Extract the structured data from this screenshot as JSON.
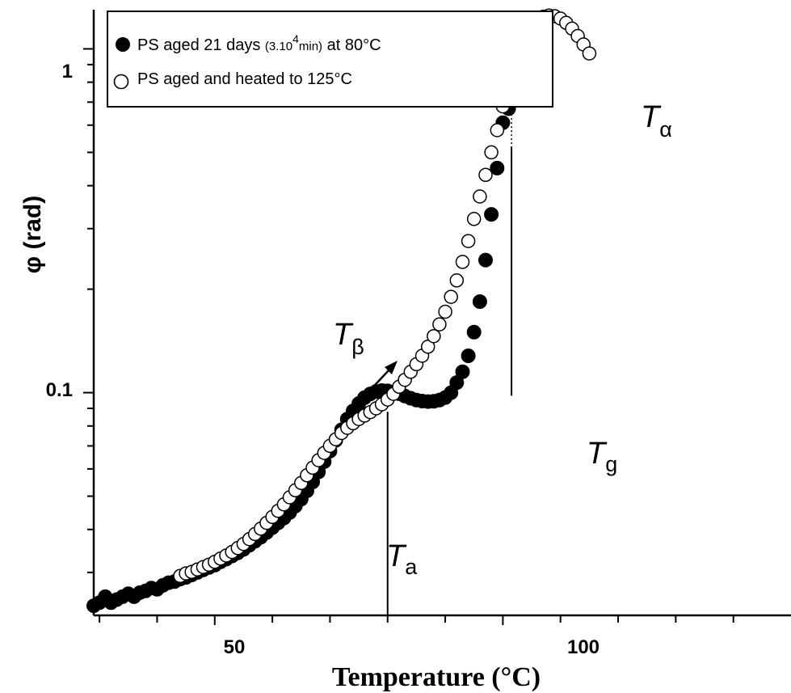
{
  "chart_data": {
    "type": "scatter",
    "xlabel": "Temperature (°C)",
    "ylabel": "φ (rad)",
    "xlim": [
      29,
      150
    ],
    "ylim": [
      0.0225,
      1.3
    ],
    "yscale": "log",
    "x_ticks": [
      50,
      100
    ],
    "y_ticks": [
      0.1,
      1
    ],
    "y_tick_labels": [
      "0.1",
      "1"
    ],
    "x_tick_labels": [
      "50",
      "100"
    ],
    "legend": {
      "position": "top-left",
      "entries": [
        {
          "prefix": "PS aged 21 days ",
          "small": "(3.10",
          "sup": "4",
          "small2": "min)",
          "suffix": " at 80°C"
        },
        {
          "prefix": "PS aged and heated to 125°C"
        }
      ]
    },
    "annotations": {
      "t_beta": {
        "main": "T",
        "sub": "β"
      },
      "t_alpha": {
        "main": "T",
        "sub": "α"
      },
      "t_a": {
        "main": "T",
        "sub": "a"
      },
      "t_g": {
        "main": "T",
        "sub": "g"
      }
    },
    "vertical_markers": [
      {
        "x": 80,
        "y_top": 0.088,
        "y_bottom": 0.0225
      },
      {
        "x": 101.5,
        "y_top": 0.52,
        "y_bottom": 0.098
      }
    ],
    "series": [
      {
        "name": "PS aged 21 days (3.10⁴min) at 80°C",
        "marker": "filled-circle",
        "points": [
          [
            29,
            0.024
          ],
          [
            30,
            0.0245
          ],
          [
            31,
            0.0255
          ],
          [
            32,
            0.0245
          ],
          [
            33,
            0.025
          ],
          [
            34,
            0.0255
          ],
          [
            35,
            0.026
          ],
          [
            36,
            0.0255
          ],
          [
            37,
            0.0262
          ],
          [
            38,
            0.0265
          ],
          [
            39,
            0.027
          ],
          [
            40,
            0.0268
          ],
          [
            41,
            0.0275
          ],
          [
            42,
            0.028
          ],
          [
            43,
            0.0282
          ],
          [
            44,
            0.0287
          ],
          [
            45,
            0.029
          ],
          [
            46,
            0.0295
          ],
          [
            47,
            0.03
          ],
          [
            48,
            0.0305
          ],
          [
            49,
            0.031
          ],
          [
            50,
            0.0315
          ],
          [
            51,
            0.0322
          ],
          [
            52,
            0.0328
          ],
          [
            53,
            0.0335
          ],
          [
            54,
            0.0342
          ],
          [
            55,
            0.035
          ],
          [
            56,
            0.036
          ],
          [
            57,
            0.037
          ],
          [
            58,
            0.038
          ],
          [
            59,
            0.0392
          ],
          [
            60,
            0.0405
          ],
          [
            61,
            0.0418
          ],
          [
            62,
            0.0432
          ],
          [
            63,
            0.0448
          ],
          [
            64,
            0.0468
          ],
          [
            65,
            0.049
          ],
          [
            66,
            0.0518
          ],
          [
            67,
            0.055
          ],
          [
            68,
            0.0588
          ],
          [
            69,
            0.063
          ],
          [
            70,
            0.0676
          ],
          [
            71,
            0.0727
          ],
          [
            72,
            0.078
          ],
          [
            73,
            0.0838
          ],
          [
            74,
            0.0885
          ],
          [
            75,
            0.093
          ],
          [
            76,
            0.0967
          ],
          [
            77,
            0.0992
          ],
          [
            78,
            0.1008
          ],
          [
            79,
            0.1014
          ],
          [
            80,
            0.1012
          ],
          [
            81,
            0.1005
          ],
          [
            82,
            0.0993
          ],
          [
            83,
            0.0978
          ],
          [
            84,
            0.0963
          ],
          [
            85,
            0.0952
          ],
          [
            86,
            0.0945
          ],
          [
            87,
            0.0942
          ],
          [
            88,
            0.0944
          ],
          [
            89,
            0.0952
          ],
          [
            90,
            0.0968
          ],
          [
            91,
            0.1
          ],
          [
            92,
            0.107
          ],
          [
            93,
            0.115
          ],
          [
            94,
            0.128
          ],
          [
            95,
            0.15
          ],
          [
            96,
            0.184
          ],
          [
            97,
            0.243
          ],
          [
            98,
            0.33
          ],
          [
            99,
            0.45
          ],
          [
            100,
            0.61
          ],
          [
            101,
            0.67
          ]
        ]
      },
      {
        "name": "PS aged and heated to 125°C",
        "marker": "open-circle",
        "points": [
          [
            44,
            0.0293
          ],
          [
            45,
            0.0298
          ],
          [
            46,
            0.0301
          ],
          [
            47,
            0.0306
          ],
          [
            48,
            0.0311
          ],
          [
            49,
            0.0316
          ],
          [
            50,
            0.0322
          ],
          [
            51,
            0.0329
          ],
          [
            52,
            0.0336
          ],
          [
            53,
            0.0344
          ],
          [
            54,
            0.0353
          ],
          [
            55,
            0.0363
          ],
          [
            56,
            0.0375
          ],
          [
            57,
            0.0388
          ],
          [
            58,
            0.0402
          ],
          [
            59,
            0.0418
          ],
          [
            60,
            0.0435
          ],
          [
            61,
            0.0453
          ],
          [
            62,
            0.0473
          ],
          [
            63,
            0.0496
          ],
          [
            64,
            0.052
          ],
          [
            65,
            0.0546
          ],
          [
            66,
            0.0575
          ],
          [
            67,
            0.0605
          ],
          [
            68,
            0.0636
          ],
          [
            69,
            0.0668
          ],
          [
            70,
            0.07
          ],
          [
            71,
            0.0732
          ],
          [
            72,
            0.0763
          ],
          [
            73,
            0.079
          ],
          [
            74,
            0.0815
          ],
          [
            75,
            0.0838
          ],
          [
            76,
            0.0858
          ],
          [
            77,
            0.0878
          ],
          [
            78,
            0.09
          ],
          [
            79,
            0.0925
          ],
          [
            80,
            0.0955
          ],
          [
            81,
            0.0992
          ],
          [
            82,
            0.104
          ],
          [
            83,
            0.109
          ],
          [
            84,
            0.115
          ],
          [
            85,
            0.121
          ],
          [
            86,
            0.128
          ],
          [
            87,
            0.136
          ],
          [
            88,
            0.146
          ],
          [
            89,
            0.158
          ],
          [
            90,
            0.172
          ],
          [
            91,
            0.19
          ],
          [
            92,
            0.212
          ],
          [
            93,
            0.24
          ],
          [
            94,
            0.276
          ],
          [
            95,
            0.32
          ],
          [
            96,
            0.372
          ],
          [
            97,
            0.43
          ],
          [
            98,
            0.5
          ],
          [
            99,
            0.58
          ],
          [
            100,
            0.68
          ],
          [
            101,
            0.8
          ],
          [
            102,
            0.93
          ],
          [
            103,
            1.04
          ],
          [
            104,
            1.12
          ],
          [
            105,
            1.18
          ],
          [
            106,
            1.22
          ],
          [
            107,
            1.24
          ],
          [
            108,
            1.25
          ],
          [
            109,
            1.245
          ],
          [
            110,
            1.225
          ],
          [
            111,
            1.19
          ],
          [
            112,
            1.145
          ],
          [
            113,
            1.09
          ],
          [
            114,
            1.03
          ],
          [
            115,
            0.97
          ]
        ]
      }
    ]
  }
}
